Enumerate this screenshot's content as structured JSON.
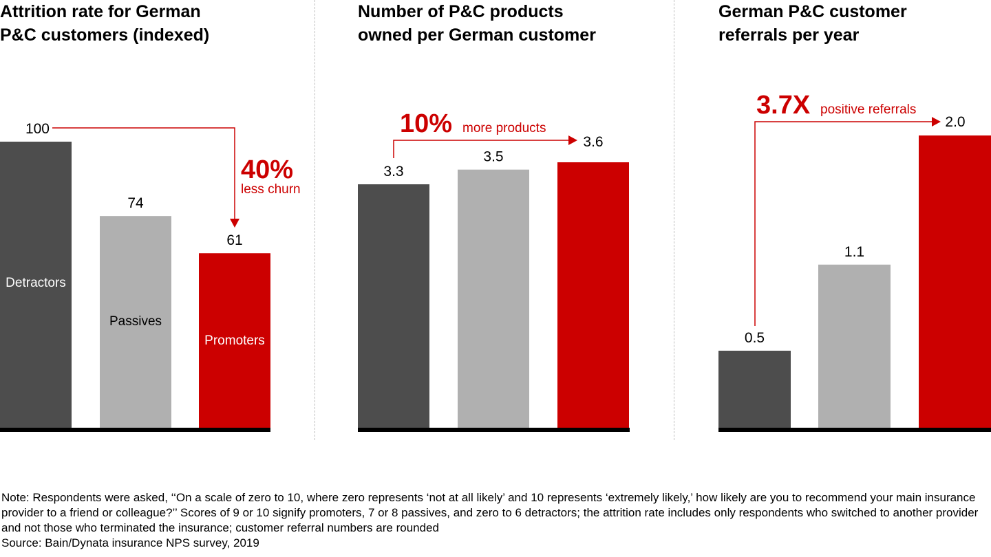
{
  "colors": {
    "detractors": "#4d4d4d",
    "passives": "#b0b0b0",
    "promoters": "#cc0000",
    "accent": "#cc0000",
    "baseline": "#000000"
  },
  "chart_data": [
    {
      "type": "bar",
      "title": "Attrition rate for German P&C customers (indexed)",
      "title_lines": [
        "Attrition rate for German",
        "P&C customers (indexed)"
      ],
      "categories": [
        "Detractors",
        "Passives",
        "Promoters"
      ],
      "values": [
        100,
        74,
        61
      ],
      "value_labels": [
        "100",
        "74",
        "61"
      ],
      "category_labels_inside_bars": true,
      "ylim": [
        0,
        100
      ],
      "xlabel": "",
      "ylabel": "",
      "grid": false,
      "annotation": {
        "big": "40%",
        "small": "less churn",
        "from": "Detractors",
        "to": "Promoters",
        "direction": "down"
      }
    },
    {
      "type": "bar",
      "title": "Number of P&C products owned per German customer",
      "title_lines": [
        "Number of P&C products",
        "owned per German customer"
      ],
      "categories": [
        "Detractors",
        "Passives",
        "Promoters"
      ],
      "values": [
        3.3,
        3.5,
        3.6
      ],
      "value_labels": [
        "3.3",
        "3.5",
        "3.6"
      ],
      "ylim": [
        0,
        3.6
      ],
      "xlabel": "",
      "ylabel": "",
      "grid": false,
      "annotation": {
        "big": "10%",
        "small": "more products",
        "from": "Detractors",
        "to": "Promoters",
        "direction": "right"
      }
    },
    {
      "type": "bar",
      "title": "German P&C customer referrals per year",
      "title_lines": [
        "German P&C customer",
        "referrals per year"
      ],
      "categories": [
        "Detractors",
        "Passives",
        "Promoters"
      ],
      "values": [
        0.5,
        1.1,
        2.0
      ],
      "value_labels": [
        "0.5",
        "1.1",
        "2.0"
      ],
      "ylim": [
        0,
        2.0
      ],
      "xlabel": "",
      "ylabel": "",
      "grid": false,
      "annotation": {
        "big": "3.7X",
        "small": "positive referrals",
        "from": "Detractors",
        "to": "Promoters",
        "direction": "right"
      }
    }
  ],
  "footnote": {
    "note": "Note: Respondents were asked, ‘‘On a scale of zero to 10, where zero represents ‘not at all likely’ and 10 represents ‘extremely likely,’ how likely are you to recommend your main insurance provider to a friend or colleague?’’ Scores of 9 or 10 signify promoters, 7 or 8 passives, and zero to 6 detractors; the attrition rate includes only respondents who switched to another provider and not those who terminated the insurance; customer referral numbers are rounded",
    "source": "Source: Bain/Dynata insurance NPS survey, 2019"
  }
}
